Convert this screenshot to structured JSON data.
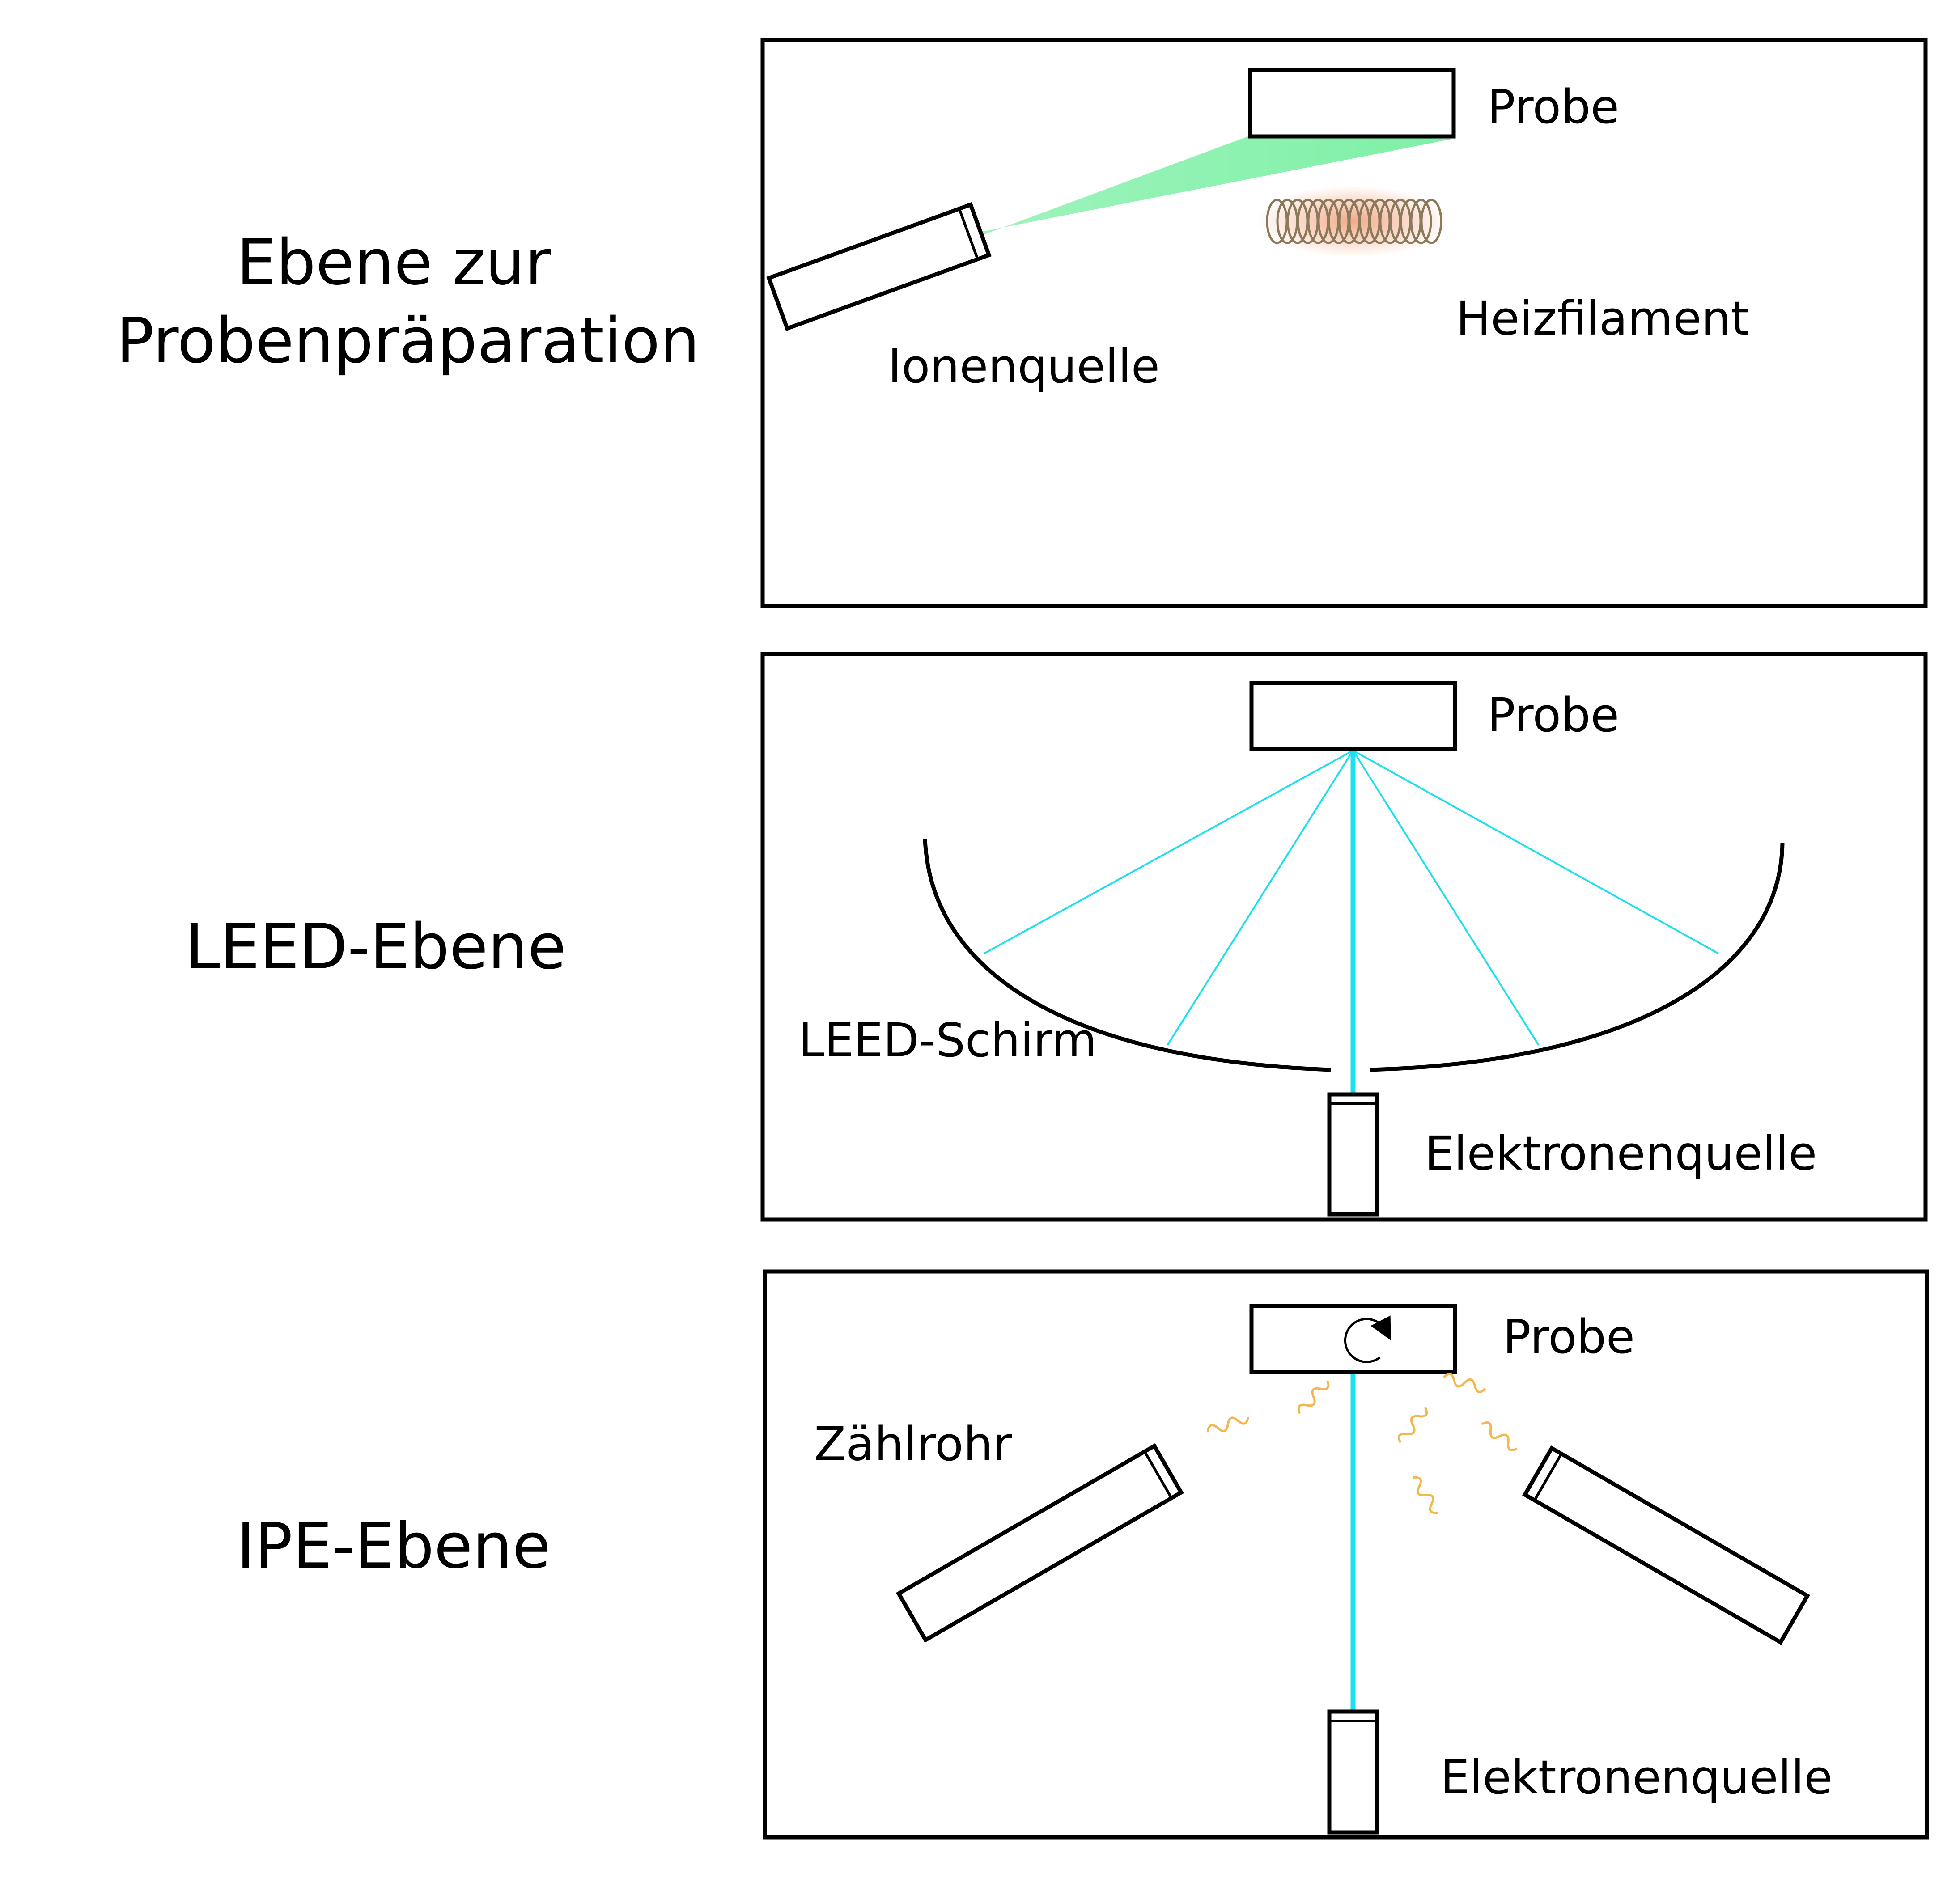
{
  "panels": [
    {
      "title_lines": [
        "Ebene zur",
        "Probenpräparation"
      ],
      "labels": {
        "probe": "Probe",
        "source": "Ionenquelle",
        "heater": "Heizfilament"
      }
    },
    {
      "title_lines": [
        "LEED-Ebene"
      ],
      "labels": {
        "probe": "Probe",
        "screen": "LEED-Schirm",
        "source": "Elektronenquelle"
      }
    },
    {
      "title_lines": [
        "IPE-Ebene"
      ],
      "labels": {
        "probe": "Probe",
        "detector": "Zählrohr",
        "source": "Elektronenquelle"
      }
    }
  ],
  "colors": {
    "ion_beam": "#7ef0a6",
    "electron_beam": "#1de0ee",
    "heater_glow": "#f2a07e",
    "photons": "#f4b650"
  }
}
